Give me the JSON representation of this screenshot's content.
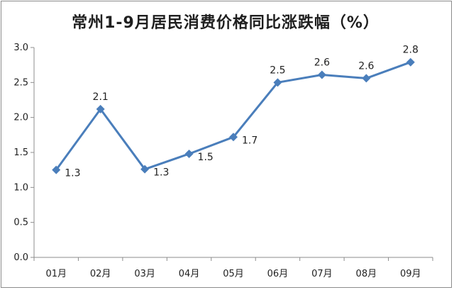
{
  "chart_data": {
    "type": "line",
    "title": "常州1-9月居民消费价格同比涨跌幅（%）",
    "categories": [
      "01月",
      "02月",
      "03月",
      "04月",
      "05月",
      "06月",
      "07月",
      "08月",
      "09月"
    ],
    "series": [
      {
        "values": [
          1.25,
          2.12,
          1.26,
          1.48,
          1.72,
          2.5,
          2.61,
          2.56,
          2.79
        ]
      }
    ],
    "data_labels": [
      "1.3",
      "2.1",
      "1.3",
      "1.5",
      "1.7",
      "2.5",
      "2.6",
      "2.6",
      "2.8"
    ],
    "yticks": [
      "0.0",
      "0.5",
      "1.0",
      "1.5",
      "2.0",
      "2.5",
      "3.0"
    ],
    "ylim": [
      0,
      3
    ],
    "grid": false,
    "legend": "none",
    "colors": {
      "line": "#4a7ebb",
      "marker": "#4a7ebb",
      "axis": "#8c8c8c"
    }
  }
}
